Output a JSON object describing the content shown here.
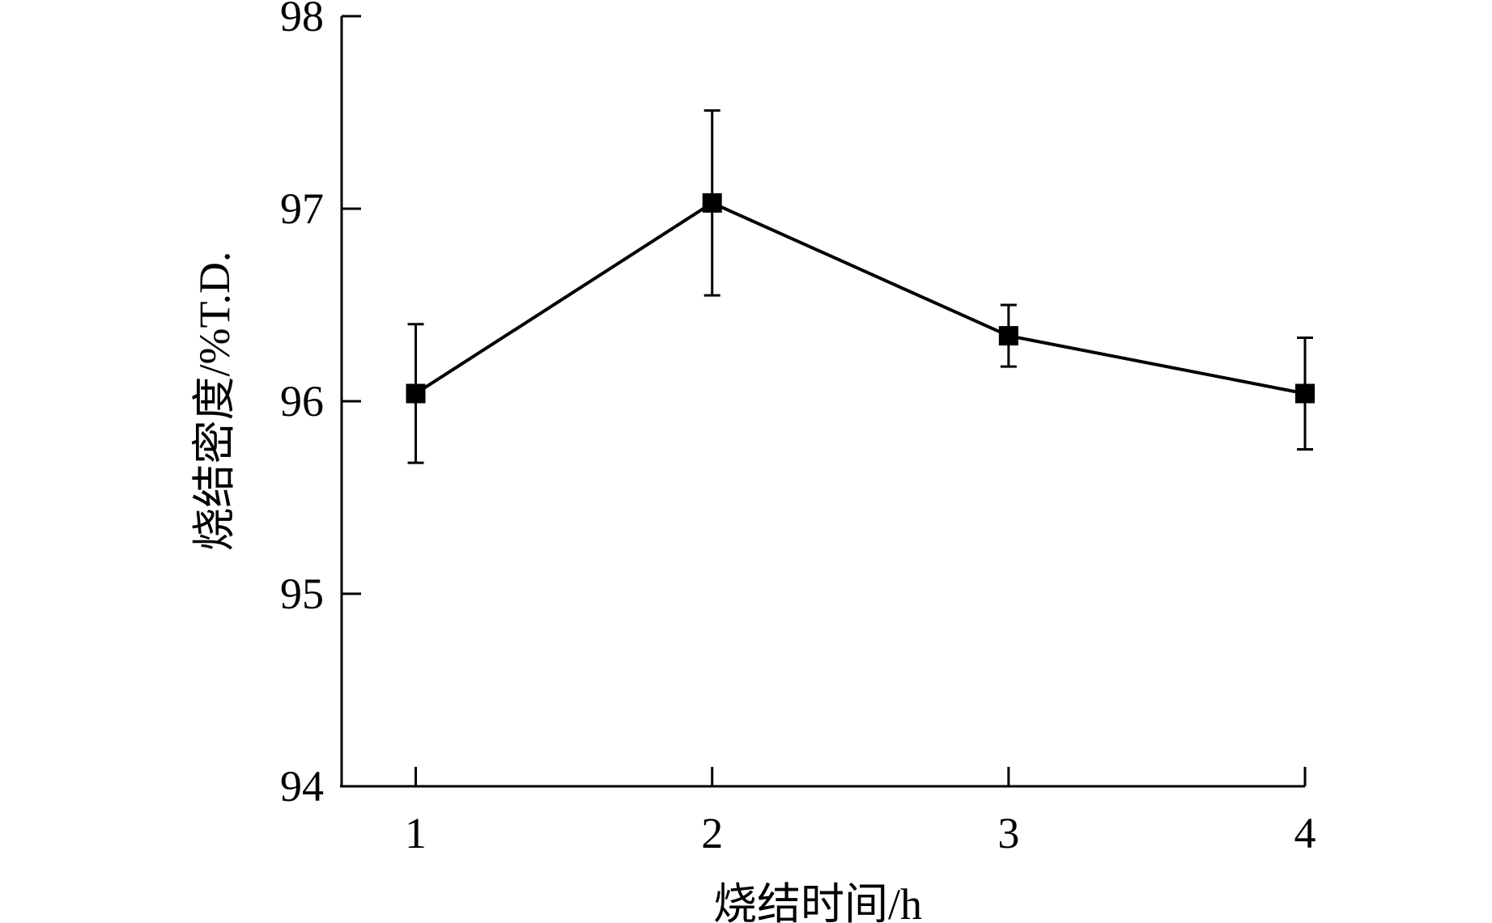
{
  "chart_data": {
    "type": "line",
    "title": "",
    "xlabel": "烧结时间/h",
    "ylabel": "烧结密度/%T.D.",
    "x": [
      1,
      2,
      3,
      4
    ],
    "xticks": [
      "1",
      "2",
      "3",
      "4"
    ],
    "yticks": [
      "94",
      "95",
      "96",
      "97",
      "98"
    ],
    "xlim": [
      0.75,
      4.0
    ],
    "ylim": [
      94,
      98
    ],
    "grid": false,
    "legend": "none",
    "series": [
      {
        "values": [
          96.04,
          97.03,
          96.34,
          96.04
        ],
        "error": [
          0.36,
          0.48,
          0.16,
          0.29
        ],
        "marker": "square",
        "color": "#000000"
      }
    ]
  }
}
